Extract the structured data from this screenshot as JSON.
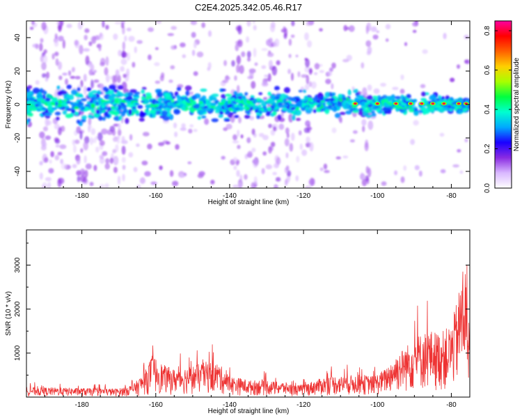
{
  "title": "C2E4.2025.342.05.46.R17",
  "chart_data": [
    {
      "type": "heatmap",
      "xlabel": "Height of straight line (km)",
      "ylabel": "Frequency (Hz)",
      "xlim": [
        -195,
        -75
      ],
      "ylim": [
        -50,
        50
      ],
      "xticks": [
        -180,
        -160,
        -140,
        -120,
        -100,
        -80
      ],
      "yticks": [
        -40,
        -20,
        0,
        20,
        40
      ],
      "band_center_hz": 0,
      "band_halfwidth_hz": 6,
      "hot_spots_km": [
        -106,
        -100,
        -95,
        -91,
        -88,
        -85,
        -82,
        -78,
        -76
      ],
      "colorbar": {
        "label": "Normalized spectral amplitude",
        "min": 0.0,
        "max": 0.85,
        "ticks": [
          0.0,
          0.2,
          0.4,
          0.6,
          0.8
        ],
        "colors": [
          "#ffffff",
          "#d9b8ff",
          "#8a2be2",
          "#1a00ff",
          "#00a8ff",
          "#00ffd0",
          "#00ff40",
          "#a8ff00",
          "#ffd000",
          "#ff6000",
          "#ff0000",
          "#ff00a0"
        ]
      }
    },
    {
      "type": "line",
      "xlabel": "Height of straight line (km)",
      "ylabel": "SNR (10 * v/v)",
      "xlim": [
        -195,
        -75
      ],
      "ylim": [
        0,
        3800
      ],
      "xticks": [
        -180,
        -160,
        -140,
        -120,
        -100,
        -80
      ],
      "yticks": [
        1000,
        2000,
        3000
      ],
      "color": "#ee3333",
      "envelope": {
        "x": [
          -195,
          -180,
          -170,
          -166,
          -163,
          -161,
          -158,
          -155,
          -152,
          -149,
          -146,
          -143,
          -140,
          -137,
          -134,
          -131,
          -128,
          -125,
          -122,
          -119,
          -116,
          -113,
          -110,
          -107,
          -104,
          -101,
          -98,
          -95,
          -92,
          -89,
          -86,
          -83,
          -80,
          -78,
          -76.5,
          -75
        ],
        "y": [
          200,
          180,
          170,
          260,
          500,
          850,
          650,
          560,
          600,
          650,
          720,
          680,
          420,
          380,
          330,
          360,
          310,
          300,
          230,
          280,
          360,
          430,
          420,
          440,
          450,
          420,
          560,
          850,
          1050,
          1250,
          1350,
          1300,
          1450,
          2100,
          2900,
          1500
        ]
      }
    }
  ]
}
